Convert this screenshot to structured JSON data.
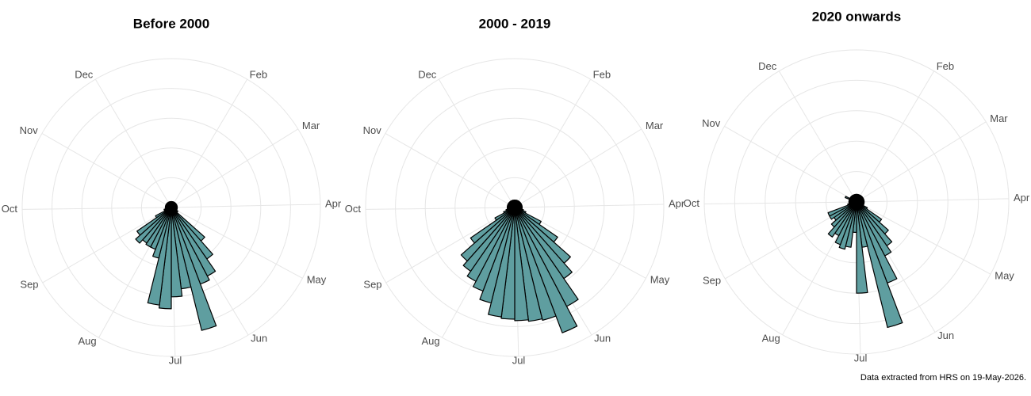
{
  "chart_data": [
    {
      "type": "rose",
      "title": "Before 2000",
      "xlim": [
        0,
        365
      ],
      "xticks": [
        {
          "value": 31,
          "label": "Feb"
        },
        {
          "value": 59,
          "label": "Mar"
        },
        {
          "value": 90,
          "label": "Apr"
        },
        {
          "value": 120,
          "label": "May"
        },
        {
          "value": 151,
          "label": "Jun"
        },
        {
          "value": 181,
          "label": "Jul"
        },
        {
          "value": 212,
          "label": "Aug"
        },
        {
          "value": 243,
          "label": "Sep"
        },
        {
          "value": 273,
          "label": "Oct"
        },
        {
          "value": 304,
          "label": "Nov"
        },
        {
          "value": 334,
          "label": "Dec"
        }
      ],
      "ylim": [
        0,
        100
      ],
      "yticks": [
        20,
        40,
        60,
        80,
        100
      ],
      "grid": true,
      "color": "#5f9ea0",
      "values": [
        4,
        4,
        4,
        4,
        4,
        4,
        4,
        4,
        4,
        4,
        4,
        4,
        4,
        4,
        4,
        4,
        4,
        5,
        5,
        30,
        42,
        52,
        55,
        85,
        55,
        60,
        68,
        66,
        35,
        30,
        30,
        29,
        32,
        28,
        12,
        5,
        5,
        4,
        4,
        4,
        4,
        4,
        4,
        4,
        4,
        4,
        4,
        4,
        4,
        4,
        4,
        4
      ]
    },
    {
      "type": "rose",
      "title": "2000 - 2019",
      "xlim": [
        0,
        365
      ],
      "xticks": [
        {
          "value": 31,
          "label": "Feb"
        },
        {
          "value": 59,
          "label": "Mar"
        },
        {
          "value": 90,
          "label": "Apr"
        },
        {
          "value": 120,
          "label": "May"
        },
        {
          "value": 151,
          "label": "Jun"
        },
        {
          "value": 181,
          "label": "Jul"
        },
        {
          "value": 212,
          "label": "Aug"
        },
        {
          "value": 243,
          "label": "Sep"
        },
        {
          "value": 273,
          "label": "Oct"
        },
        {
          "value": 304,
          "label": "Nov"
        },
        {
          "value": 334,
          "label": "Dec"
        }
      ],
      "ylim": [
        0,
        100
      ],
      "yticks": [
        20,
        40,
        60,
        80,
        100
      ],
      "grid": true,
      "color": "#5f9ea0",
      "values": [
        5,
        5,
        5,
        5,
        5,
        5,
        5,
        5,
        5,
        5,
        5,
        5,
        5,
        5,
        5,
        6,
        8,
        20,
        35,
        50,
        58,
        75,
        90,
        78,
        77,
        76,
        75,
        74,
        66,
        60,
        56,
        52,
        48,
        36,
        15,
        8,
        6,
        5,
        5,
        5,
        5,
        5,
        5,
        5,
        5,
        5,
        5,
        5,
        5,
        5,
        5,
        5
      ]
    },
    {
      "type": "rose",
      "title": "2020 onwards",
      "xlim": [
        0,
        365
      ],
      "xticks": [
        {
          "value": 31,
          "label": "Feb"
        },
        {
          "value": 59,
          "label": "Mar"
        },
        {
          "value": 90,
          "label": "Apr"
        },
        {
          "value": 120,
          "label": "May"
        },
        {
          "value": 151,
          "label": "Jun"
        },
        {
          "value": 181,
          "label": "Jul"
        },
        {
          "value": 212,
          "label": "Aug"
        },
        {
          "value": 243,
          "label": "Sep"
        },
        {
          "value": 273,
          "label": "Oct"
        },
        {
          "value": 304,
          "label": "Nov"
        },
        {
          "value": 334,
          "label": "Dec"
        }
      ],
      "ylim": [
        0,
        100
      ],
      "yticks": [
        20,
        40,
        60,
        80,
        100
      ],
      "grid": true,
      "color": "#5f9ea0",
      "values": [
        5,
        5,
        5,
        5,
        5,
        5,
        5,
        5,
        5,
        5,
        5,
        5,
        5,
        5,
        5,
        5,
        5,
        8,
        20,
        28,
        35,
        40,
        57,
        85,
        30,
        60,
        20,
        30,
        32,
        30,
        25,
        28,
        22,
        18,
        20,
        20,
        6,
        5,
        5,
        5,
        5,
        5,
        8,
        5,
        5,
        5,
        5,
        5,
        5,
        5,
        5,
        5
      ]
    }
  ],
  "caption": "Data extracted from HRS on 19-May-2026."
}
